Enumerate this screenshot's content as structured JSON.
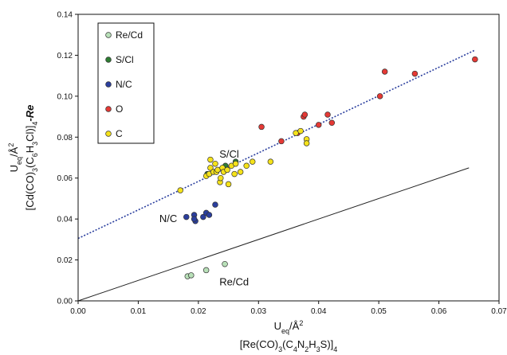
{
  "chart_data": {
    "type": "scatter",
    "xlim": [
      0,
      0.07
    ],
    "ylim": [
      0,
      0.14
    ],
    "x_ticks": [
      "0.00",
      "0.01",
      "0.02",
      "0.03",
      "0.04",
      "0.05",
      "0.06",
      "0.07"
    ],
    "y_ticks": [
      "0.00",
      "0.02",
      "0.04",
      "0.06",
      "0.08",
      "0.10",
      "0.12",
      "0.14"
    ],
    "xlabel": {
      "line1": "U",
      "line1_sub": "eq",
      "line1_rest": "/Å",
      "line1_sup": "2",
      "line2": "[Re(CO)3(C4N2H3S)]4"
    },
    "ylabel": {
      "line1": "U",
      "line1_sub": "eq",
      "line1_rest": "/Å",
      "line1_sup": "2",
      "line2": "[Cd(CO)3(C6H3Cl)]4-Re"
    },
    "legend_position": "top-left",
    "grid": false,
    "series": [
      {
        "name": "Re/Cd",
        "color": "#b8e0b8",
        "points": [
          [
            0.0182,
            0.012
          ],
          [
            0.0188,
            0.0125
          ],
          [
            0.0213,
            0.015
          ],
          [
            0.0244,
            0.018
          ]
        ]
      },
      {
        "name": "S/Cl",
        "color": "#2e7d32",
        "points": [
          [
            0.0215,
            0.062
          ],
          [
            0.0245,
            0.066
          ],
          [
            0.0262,
            0.068
          ]
        ]
      },
      {
        "name": "N/C",
        "color": "#2b3f9e",
        "points": [
          [
            0.018,
            0.041
          ],
          [
            0.0193,
            0.042
          ],
          [
            0.0195,
            0.039
          ],
          [
            0.0208,
            0.041
          ],
          [
            0.0213,
            0.043
          ],
          [
            0.0218,
            0.042
          ],
          [
            0.0228,
            0.047
          ],
          [
            0.0193,
            0.04
          ]
        ]
      },
      {
        "name": "O",
        "color": "#e53935",
        "points": [
          [
            0.0305,
            0.085
          ],
          [
            0.0338,
            0.078
          ],
          [
            0.0365,
            0.082
          ],
          [
            0.0375,
            0.09
          ],
          [
            0.0377,
            0.091
          ],
          [
            0.04,
            0.086
          ],
          [
            0.0415,
            0.091
          ],
          [
            0.0422,
            0.087
          ],
          [
            0.0502,
            0.1
          ],
          [
            0.051,
            0.112
          ],
          [
            0.056,
            0.111
          ],
          [
            0.066,
            0.118
          ]
        ]
      },
      {
        "name": "C",
        "color": "#f5e21a",
        "points": [
          [
            0.017,
            0.054
          ],
          [
            0.0213,
            0.061
          ],
          [
            0.0218,
            0.062
          ],
          [
            0.022,
            0.065
          ],
          [
            0.022,
            0.069
          ],
          [
            0.0225,
            0.063
          ],
          [
            0.0228,
            0.067
          ],
          [
            0.023,
            0.063
          ],
          [
            0.0232,
            0.064
          ],
          [
            0.0236,
            0.058
          ],
          [
            0.0237,
            0.06
          ],
          [
            0.024,
            0.065
          ],
          [
            0.0242,
            0.063
          ],
          [
            0.0248,
            0.064
          ],
          [
            0.025,
            0.057
          ],
          [
            0.0255,
            0.066
          ],
          [
            0.026,
            0.062
          ],
          [
            0.0262,
            0.067
          ],
          [
            0.027,
            0.063
          ],
          [
            0.028,
            0.066
          ],
          [
            0.029,
            0.068
          ],
          [
            0.032,
            0.068
          ],
          [
            0.0362,
            0.082
          ],
          [
            0.037,
            0.083
          ],
          [
            0.038,
            0.079
          ],
          [
            0.038,
            0.077
          ]
        ]
      }
    ],
    "lines": [
      {
        "name": "regression fit",
        "color": "#2b3f9e",
        "style": "dotted",
        "x": [
          0,
          0.066
        ],
        "y": [
          0.0305,
          0.1225
        ]
      },
      {
        "name": "y = x reference",
        "color": "#222222",
        "style": "solid",
        "x": [
          0,
          0.065
        ],
        "y": [
          0,
          0.065
        ]
      }
    ],
    "annotations": [
      {
        "text": "S/Cl",
        "x": 0.0235,
        "y": 0.07
      },
      {
        "text": "N/C",
        "x": 0.0135,
        "y": 0.0385
      },
      {
        "text": "Re/Cd",
        "x": 0.0235,
        "y": 0.0075
      }
    ]
  }
}
